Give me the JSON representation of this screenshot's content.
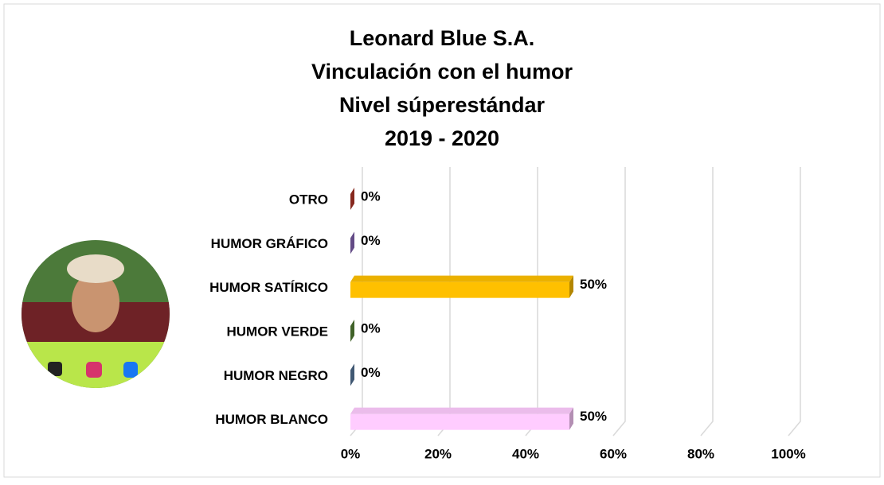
{
  "chart_data": {
    "type": "bar",
    "orientation": "horizontal",
    "title": [
      "Leonard Blue S.A.",
      "Vinculación con el humor",
      "Nivel súperestándar",
      "2019 - 2020"
    ],
    "categories": [
      "OTRO",
      "HUMOR GRÁFICO",
      "HUMOR SATÍRICO",
      "HUMOR VERDE",
      "HUMOR NEGRO",
      "HUMOR BLANCO"
    ],
    "values": [
      0,
      0,
      50,
      0,
      0,
      50
    ],
    "value_labels": [
      "0%",
      "0%",
      "50%",
      "0%",
      "0%",
      "50%"
    ],
    "colors": [
      "#c0392b",
      "#8e6bbf",
      "#ffc000",
      "#5b8c3a",
      "#5b7ea4",
      "#ffccff"
    ],
    "xlim": [
      0,
      100
    ],
    "xticks": [
      {
        "value": 0,
        "label": "0%"
      },
      {
        "value": 20,
        "label": "20%"
      },
      {
        "value": 40,
        "label": "40%"
      },
      {
        "value": 60,
        "label": "60%"
      },
      {
        "value": 80,
        "label": "80%"
      },
      {
        "value": 100,
        "label": "100%"
      }
    ],
    "grid": true
  }
}
